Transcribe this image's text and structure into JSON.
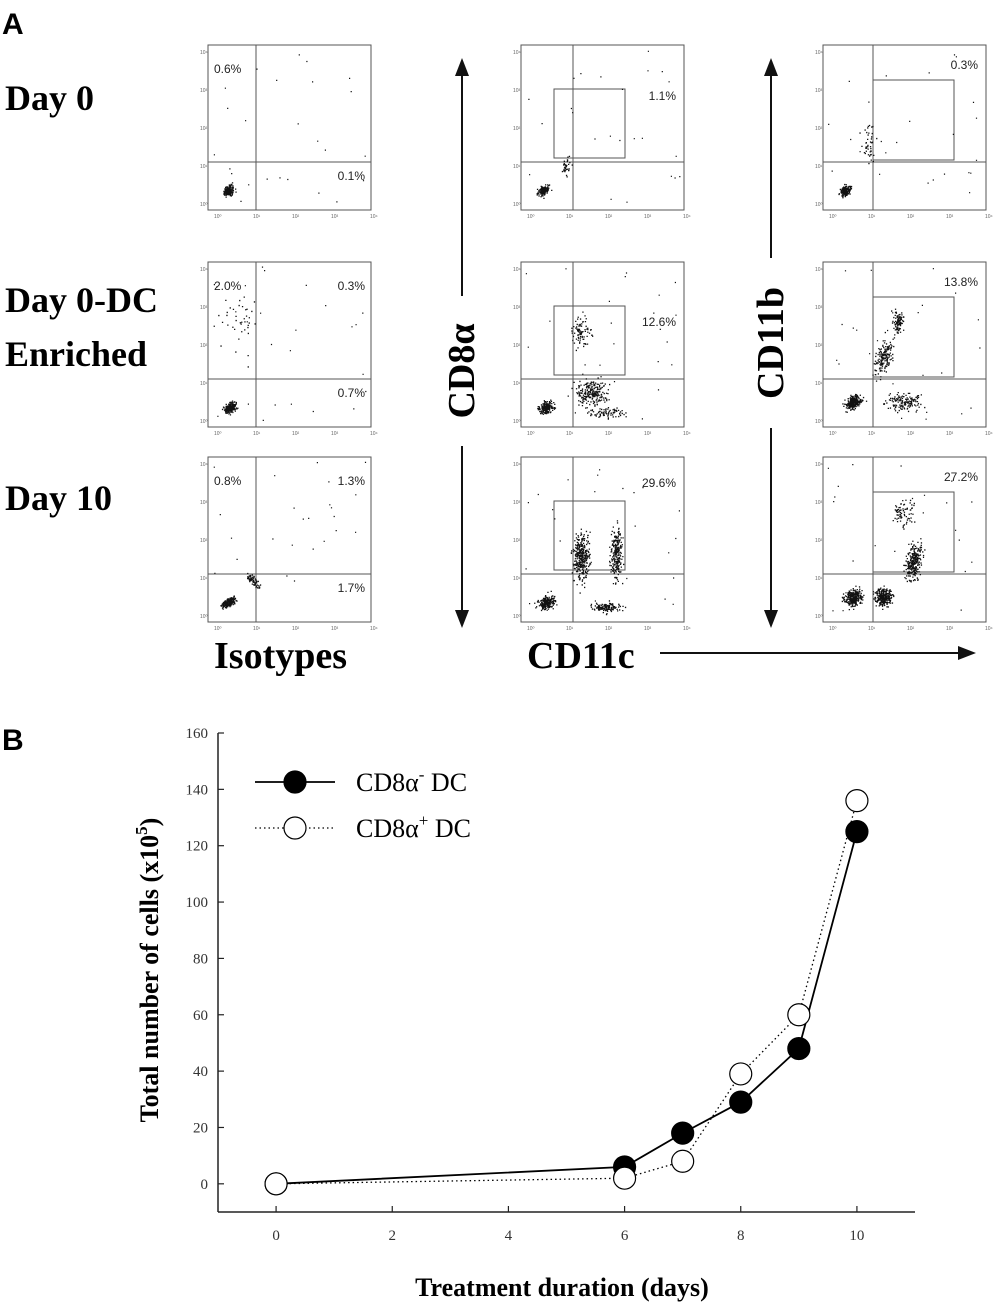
{
  "panel_a": {
    "letter": "A",
    "rows": [
      {
        "label_lines": [
          "Day 0"
        ]
      },
      {
        "label_lines": [
          "Day 0-DC",
          "Enriched"
        ]
      },
      {
        "label_lines": [
          "Day 10"
        ]
      }
    ],
    "column_captions": {
      "isotypes": "Isotypes",
      "cd11c": "CD11c"
    },
    "vertical_axis_labels": {
      "cd8a": "CD8α",
      "cd11b": "CD11b"
    },
    "plots": [
      {
        "row": 0,
        "col": "isotype",
        "percents": {
          "upper_left": "0.6%",
          "lower_right": "0.1%"
        }
      },
      {
        "row": 0,
        "col": "cd8a",
        "gate_percent": "1.1%"
      },
      {
        "row": 0,
        "col": "cd11b",
        "gate_percent": "0.3%"
      },
      {
        "row": 1,
        "col": "isotype",
        "percents": {
          "upper_left": "2.0%",
          "upper_right": "0.3%",
          "lower_right": "0.7%"
        }
      },
      {
        "row": 1,
        "col": "cd8a",
        "gate_percent": "12.6%"
      },
      {
        "row": 1,
        "col": "cd11b",
        "gate_percent": "13.8%"
      },
      {
        "row": 2,
        "col": "isotype",
        "percents": {
          "upper_left": "0.8%",
          "upper_right": "1.3%",
          "lower_right": "1.7%"
        }
      },
      {
        "row": 2,
        "col": "cd8a",
        "gate_percent": "29.6%"
      },
      {
        "row": 2,
        "col": "cd11b",
        "gate_percent": "27.2%"
      }
    ]
  },
  "panel_b": {
    "letter": "B",
    "chart_data": {
      "type": "line",
      "title": "",
      "xlabel": "Treatment duration (days)",
      "ylabel": "Total number of cells (x10",
      "ylabel_superscript": "5",
      "ylabel_close": ")",
      "xlim": [
        -1,
        11
      ],
      "ylim": [
        -10,
        160
      ],
      "x_ticks": [
        0,
        2,
        4,
        6,
        8,
        10
      ],
      "y_ticks": [
        0,
        20,
        40,
        60,
        80,
        100,
        120,
        140,
        160
      ],
      "legend_position": "top-left",
      "series": [
        {
          "name": "CD8α",
          "name_superscript": "-",
          "name_suffix": " DC",
          "style": "solid",
          "marker": "filled",
          "color": "#000000",
          "x": [
            0,
            6,
            7,
            8,
            9,
            10
          ],
          "y": [
            0,
            6,
            18,
            29,
            48,
            125
          ]
        },
        {
          "name": "CD8α",
          "name_superscript": "+",
          "name_suffix": " DC",
          "style": "dotted",
          "marker": "open",
          "color": "#000000",
          "x": [
            0,
            6,
            7,
            8,
            9,
            10
          ],
          "y": [
            0,
            2,
            8,
            39,
            60,
            136
          ]
        }
      ]
    }
  }
}
